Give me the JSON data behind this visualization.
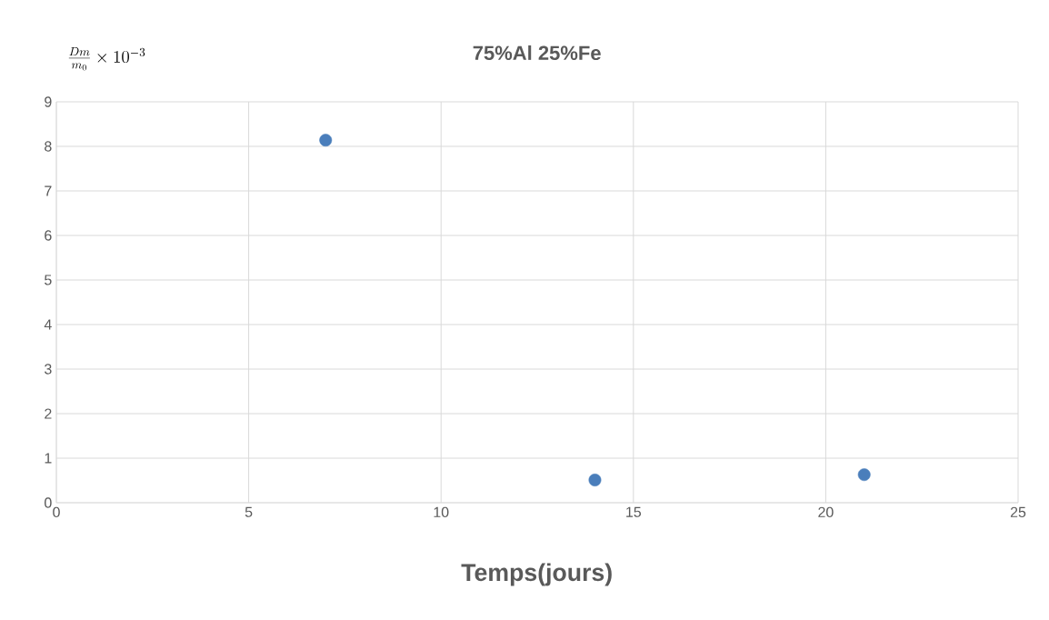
{
  "chart_data": {
    "type": "scatter",
    "title": "75%Al 25%Fe",
    "xlabel": "Temps(jours)",
    "ylabel": "\\frac{Dm}{m_0}\\times 10^{-3}",
    "x": [
      7,
      14,
      21
    ],
    "series": [
      {
        "color": "#4a7ebb",
        "values": [
          8.14,
          0.51,
          0.63
        ]
      }
    ],
    "xlim": [
      0,
      25
    ],
    "xticks": [
      0,
      5,
      10,
      15,
      20,
      25
    ],
    "ylim": [
      0,
      9
    ],
    "yticks": [
      0,
      1,
      2,
      3,
      4,
      5,
      6,
      7,
      8,
      9
    ],
    "grid": true,
    "marker": "circle"
  }
}
